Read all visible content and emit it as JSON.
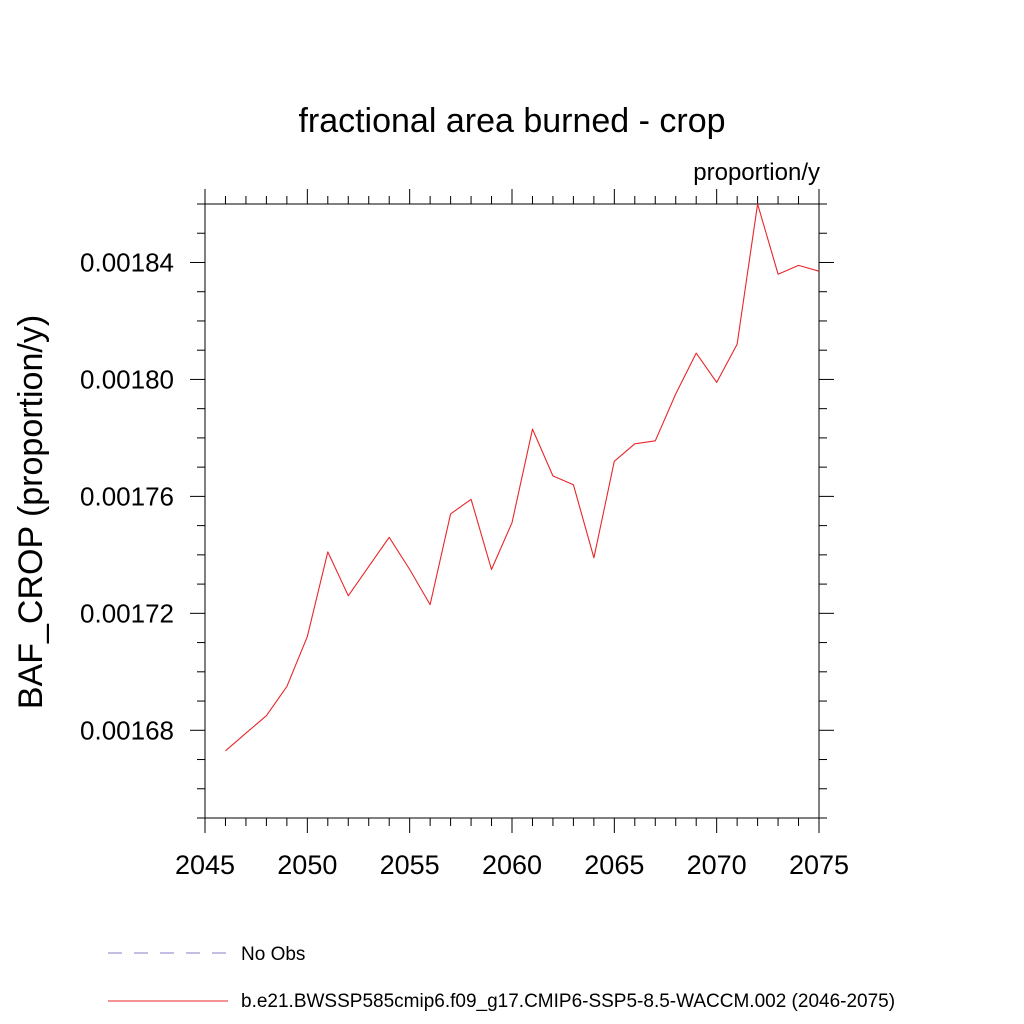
{
  "chart_data": {
    "type": "line",
    "title": "fractional area burned - crop",
    "units_label": "proportion/y",
    "ylabel": "BAF_CROP  (proportion/y)",
    "xlabel": "",
    "xlim": [
      2045,
      2075
    ],
    "ylim": [
      0.00165,
      0.00186
    ],
    "xticks": [
      "2045",
      "2050",
      "2055",
      "2060",
      "2065",
      "2070",
      "2075"
    ],
    "yticks": [
      "0.00168",
      "0.00172",
      "0.00176",
      "0.00180",
      "0.00184"
    ],
    "grid": false,
    "legend_position": "bottom",
    "legend": [
      {
        "label": "No Obs",
        "color": "#8a7fc4",
        "style": "dashed"
      },
      {
        "label": "b.e21.BWSSP585cmip6.f09_g17.CMIP6-SSP5-8.5-WACCM.002 (2046-2075)",
        "color": "#e8262a",
        "style": "solid"
      }
    ],
    "series": [
      {
        "name": "b.e21.BWSSP585cmip6.f09_g17.CMIP6-SSP5-8.5-WACCM.002 (2046-2075)",
        "color": "#e8262a",
        "x": [
          2046,
          2047,
          2048,
          2049,
          2050,
          2051,
          2052,
          2053,
          2054,
          2055,
          2056,
          2057,
          2058,
          2059,
          2060,
          2061,
          2062,
          2063,
          2064,
          2065,
          2066,
          2067,
          2068,
          2069,
          2070,
          2071,
          2072,
          2073,
          2074,
          2075
        ],
        "y": [
          0.001673,
          0.001679,
          0.001685,
          0.001695,
          0.001712,
          0.001741,
          0.001726,
          0.001736,
          0.001746,
          0.001735,
          0.001723,
          0.001754,
          0.001759,
          0.001735,
          0.001751,
          0.001783,
          0.001767,
          0.001764,
          0.001739,
          0.001772,
          0.001778,
          0.001779,
          0.001795,
          0.001809,
          0.001799,
          0.001812,
          0.00186,
          0.001836,
          0.001839,
          0.001837
        ]
      }
    ]
  }
}
